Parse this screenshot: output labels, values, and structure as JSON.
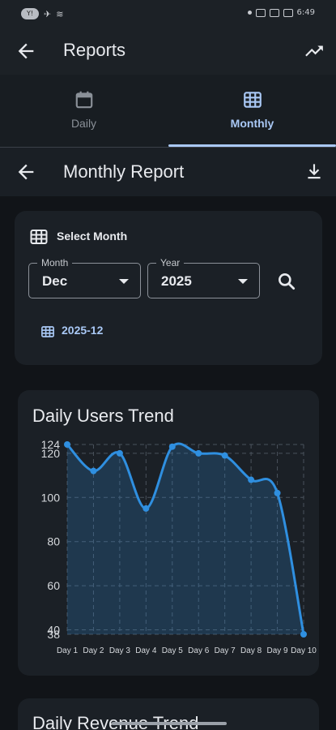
{
  "status_bar": {
    "sim_label": "Y!",
    "time": "6:49"
  },
  "app_bar": {
    "title": "Reports",
    "back_icon": "arrow-back-icon",
    "action_icon": "trending-up-icon"
  },
  "tabs": [
    {
      "label": "Daily",
      "icon": "calendar-icon",
      "selected": false
    },
    {
      "label": "Monthly",
      "icon": "grid-icon",
      "selected": true
    }
  ],
  "sub_bar": {
    "title": "Monthly Report",
    "back_icon": "arrow-back-icon",
    "action_icon": "download-icon"
  },
  "select_month": {
    "header": "Select Month",
    "month_field": {
      "label": "Month",
      "value": "Dec"
    },
    "year_field": {
      "label": "Year",
      "value": "2025"
    },
    "selected_chip": "2025-12"
  },
  "colors": {
    "accent": "#a9c8f5",
    "line": "#2f8fe0",
    "card": "#1b2026",
    "background": "#111418"
  },
  "users_chart": {
    "chart_data": {
      "type": "area",
      "title": "Daily Users Trend",
      "categories": [
        "Day 1",
        "Day 2",
        "Day 3",
        "Day 4",
        "Day 5",
        "Day 6",
        "Day 7",
        "Day 8",
        "Day 9",
        "Day 10"
      ],
      "values": [
        124,
        112,
        120,
        95,
        123,
        120,
        119,
        108,
        102,
        38
      ],
      "y_ticks": [
        38,
        40,
        60,
        80,
        100,
        120,
        124
      ],
      "ylim": [
        38,
        124
      ],
      "grid": true
    }
  },
  "revenue_chart": {
    "title": "Daily Revenue Trend"
  }
}
